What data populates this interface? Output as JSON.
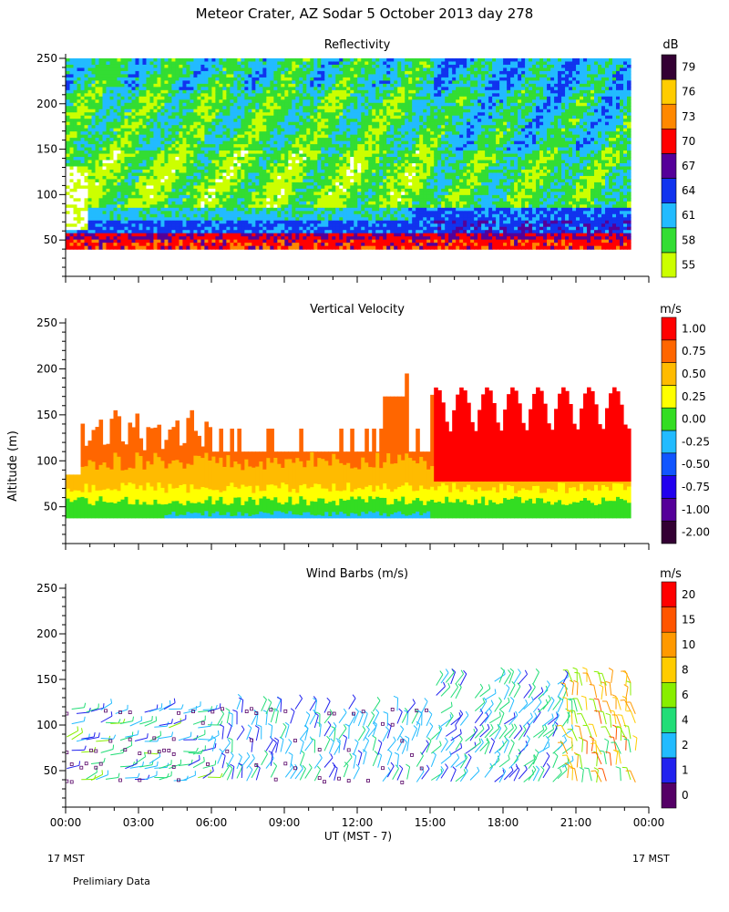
{
  "figure": {
    "title": "Meteor Crater, AZ  Sodar   5 October 2013  day 278",
    "ylabel": "Altitude (m)",
    "xlabel": "UT  (MST - 7)",
    "left_note": "17 MST",
    "right_note": "17 MST",
    "footer": "Prelimiary Data"
  },
  "chart_data": [
    {
      "type": "heatmap",
      "title": "Reflectivity",
      "xlabel": "UT  (MST - 7)",
      "ylabel": "Altitude (m)",
      "x_ticks": [
        "00:00",
        "03:00",
        "06:00",
        "09:00",
        "12:00",
        "15:00",
        "18:00",
        "21:00",
        "00:00"
      ],
      "xlim_hours": [
        0,
        24
      ],
      "y_ticks": [
        50,
        100,
        150,
        200,
        250
      ],
      "ylim": [
        10,
        255
      ],
      "data_altitude_range": [
        40,
        250
      ],
      "colorbar": {
        "unit": "dB",
        "labels": [
          "55",
          "58",
          "61",
          "64",
          "67",
          "70",
          "73",
          "76",
          "79"
        ],
        "colors": [
          "#ccff00",
          "#33dd33",
          "#22bbff",
          "#1133ee",
          "#550099",
          "#ff0000",
          "#ff8800",
          "#ffcc00",
          "#330033"
        ]
      },
      "description_levels": [
        "mostly 55-61 dB aloft",
        "64-73 dB near 40-60 m"
      ]
    },
    {
      "type": "heatmap",
      "title": "Vertical Velocity",
      "xlabel": "UT  (MST - 7)",
      "ylabel": "Altitude (m)",
      "x_ticks": [
        "00:00",
        "03:00",
        "06:00",
        "09:00",
        "12:00",
        "15:00",
        "18:00",
        "21:00",
        "00:00"
      ],
      "xlim_hours": [
        0,
        24
      ],
      "y_ticks": [
        50,
        100,
        150,
        200,
        250
      ],
      "ylim": [
        10,
        255
      ],
      "colorbar": {
        "unit": "m/s",
        "labels": [
          "-2.00",
          "-1.00",
          "-0.75",
          "-0.50",
          "-0.25",
          "0.00",
          "0.25",
          "0.50",
          "0.75",
          "1.00"
        ],
        "colors": [
          "#330033",
          "#550099",
          "#2200ee",
          "#1155ff",
          "#22bbff",
          "#33dd22",
          "#ffff00",
          "#ffbb00",
          "#ff6600",
          "#ff0000"
        ]
      }
    },
    {
      "type": "scatter",
      "title": "Wind Barbs (m/s)",
      "xlabel": "UT  (MST - 7)",
      "ylabel": "Altitude (m)",
      "x_ticks": [
        "00:00",
        "03:00",
        "06:00",
        "09:00",
        "12:00",
        "15:00",
        "18:00",
        "21:00",
        "00:00"
      ],
      "xlim_hours": [
        0,
        24
      ],
      "y_ticks": [
        50,
        100,
        150,
        200,
        250
      ],
      "ylim": [
        10,
        255
      ],
      "colorbar": {
        "unit": "m/s",
        "labels": [
          "0",
          "1",
          "2",
          "4",
          "6",
          "8",
          "10",
          "15",
          "20"
        ],
        "colors": [
          "#550066",
          "#2222ee",
          "#22bbff",
          "#22dd77",
          "#88ee00",
          "#ffcc00",
          "#ff9900",
          "#ff5500",
          "#ff0000"
        ]
      }
    }
  ]
}
